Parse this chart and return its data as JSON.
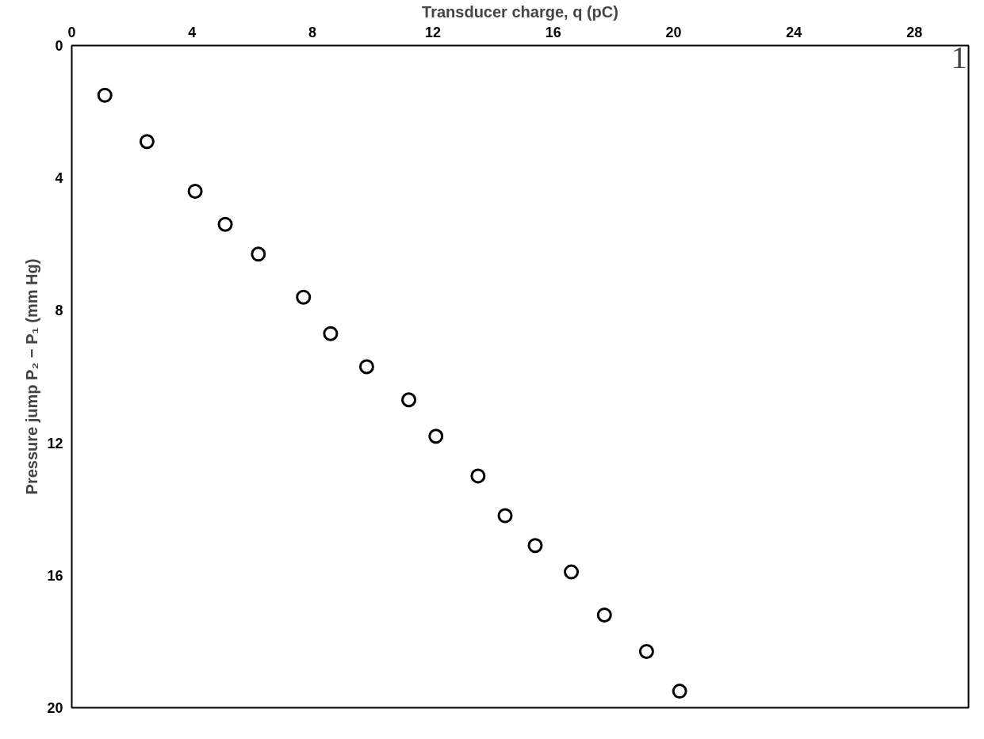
{
  "chart_data": {
    "type": "scatter",
    "xlabel": "Transducer charge, q (pC)",
    "ylabel": "Pressure jump P₂ − P₁ (mm Hg)",
    "x": [
      1.1,
      2.5,
      4.1,
      5.1,
      6.2,
      7.7,
      8.6,
      9.8,
      11.2,
      12.1,
      13.5,
      14.4,
      15.4,
      16.6,
      17.7,
      19.1,
      20.2
    ],
    "values": [
      1.5,
      2.9,
      4.4,
      5.4,
      6.3,
      7.6,
      8.7,
      9.7,
      10.7,
      11.8,
      13.0,
      14.2,
      15.1,
      15.9,
      17.2,
      18.3,
      19.5
    ],
    "color": "#000000",
    "marker": "circle",
    "xlim": [
      0,
      29.8
    ],
    "xticks": [
      0,
      4,
      8,
      12,
      16,
      20,
      24,
      28
    ],
    "ylim": [
      20,
      0
    ],
    "yticks": [
      0,
      4,
      8,
      12,
      16,
      20
    ],
    "grid": false,
    "annotations": [
      "1"
    ]
  }
}
